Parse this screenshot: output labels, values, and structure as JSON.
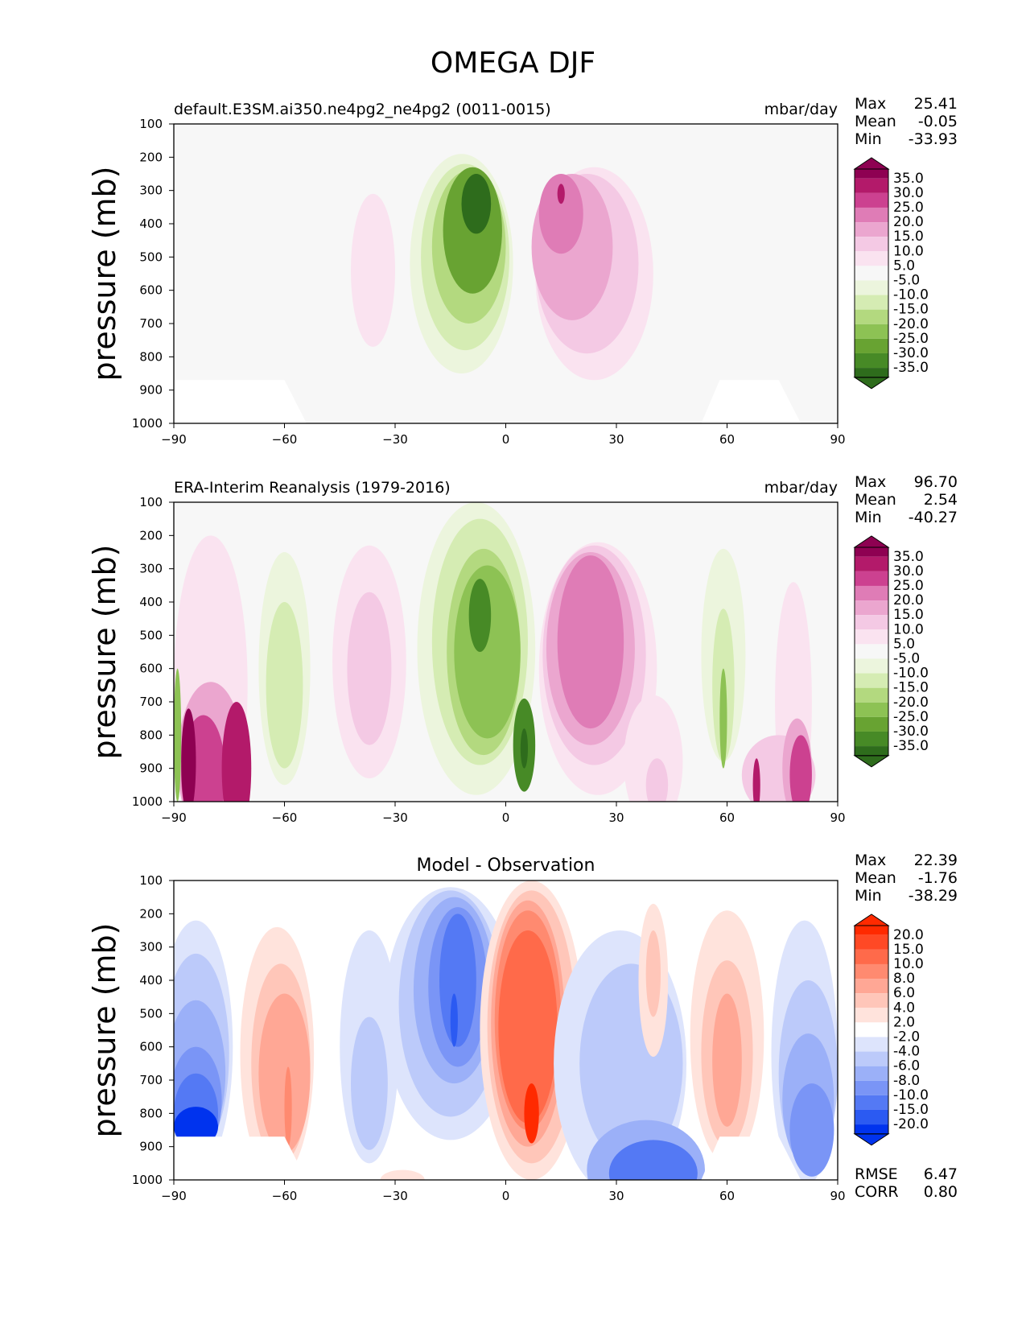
{
  "title": "OMEGA DJF",
  "panels": [
    {
      "left_title": "default.E3SM.ai350.ne4pg2_ne4pg2 (0011-0015)",
      "center_title": "",
      "units": "mbar/day",
      "ylabel": "pressure (mb)",
      "stats": [
        {
          "label": "Max",
          "value": "25.41"
        },
        {
          "label": "Mean",
          "value": "-0.05"
        },
        {
          "label": "Min",
          "value": "-33.93"
        }
      ],
      "colorbar": {
        "ticks": [
          "35.0",
          "30.0",
          "25.0",
          "20.0",
          "15.0",
          "10.0",
          "5.0",
          "-5.0",
          "-10.0",
          "-15.0",
          "-20.0",
          "-25.0",
          "-30.0",
          "-35.0"
        ],
        "colors": [
          "#8e0152",
          "#b31a6a",
          "#cc4190",
          "#df7cb6",
          "#eba6cf",
          "#f4c9e4",
          "#fae3f0",
          "#f7f7f7",
          "#ecf5dd",
          "#d5ecb3",
          "#b3d97f",
          "#8dc254",
          "#68a332",
          "#478a26",
          "#2e6c1c"
        ]
      },
      "blobs": [
        {
          "cx": -36,
          "cy": 540,
          "rx": 6,
          "ry": 230,
          "c": 6
        },
        {
          "cx": -12,
          "cy": 520,
          "rx": 14,
          "ry": 330,
          "c": 8
        },
        {
          "cx": -11,
          "cy": 500,
          "rx": 12,
          "ry": 280,
          "c": 9
        },
        {
          "cx": -10,
          "cy": 470,
          "rx": 10,
          "ry": 230,
          "c": 10
        },
        {
          "cx": -9,
          "cy": 420,
          "rx": 8,
          "ry": 190,
          "c": 12
        },
        {
          "cx": -8,
          "cy": 340,
          "rx": 4,
          "ry": 90,
          "c": 14
        },
        {
          "cx": 24,
          "cy": 550,
          "rx": 16,
          "ry": 320,
          "c": 6
        },
        {
          "cx": 22,
          "cy": 520,
          "rx": 14,
          "ry": 270,
          "c": 5
        },
        {
          "cx": 18,
          "cy": 470,
          "rx": 11,
          "ry": 220,
          "c": 4
        },
        {
          "cx": 15,
          "cy": 370,
          "rx": 6,
          "ry": 120,
          "c": 3
        },
        {
          "cx": 15,
          "cy": 310,
          "rx": 1,
          "ry": 30,
          "c": 1
        }
      ]
    },
    {
      "left_title": "ERA-Interim Reanalysis (1979-2016)",
      "center_title": "",
      "units": "mbar/day",
      "ylabel": "pressure (mb)",
      "stats": [
        {
          "label": "Max",
          "value": "96.70"
        },
        {
          "label": "Mean",
          "value": "2.54"
        },
        {
          "label": "Min",
          "value": "-40.27"
        }
      ],
      "colorbar": {
        "ticks": [
          "35.0",
          "30.0",
          "25.0",
          "20.0",
          "15.0",
          "10.0",
          "5.0",
          "-5.0",
          "-10.0",
          "-15.0",
          "-20.0",
          "-25.0",
          "-30.0",
          "-35.0"
        ],
        "colors": [
          "#8e0152",
          "#b31a6a",
          "#cc4190",
          "#df7cb6",
          "#eba6cf",
          "#f4c9e4",
          "#fae3f0",
          "#f7f7f7",
          "#ecf5dd",
          "#d5ecb3",
          "#b3d97f",
          "#8dc254",
          "#68a332",
          "#478a26",
          "#2e6c1c"
        ]
      },
      "blobs": [
        {
          "cx": -80,
          "cy": 650,
          "rx": 10,
          "ry": 450,
          "c": 6
        },
        {
          "cx": -80,
          "cy": 880,
          "rx": 9,
          "ry": 240,
          "c": 4
        },
        {
          "cx": -82,
          "cy": 920,
          "rx": 6,
          "ry": 180,
          "c": 2
        },
        {
          "cx": -73,
          "cy": 900,
          "rx": 4,
          "ry": 200,
          "c": 1
        },
        {
          "cx": -86,
          "cy": 880,
          "rx": 2,
          "ry": 160,
          "c": 0
        },
        {
          "cx": -89,
          "cy": 800,
          "rx": 1,
          "ry": 200,
          "c": 11
        },
        {
          "cx": -60,
          "cy": 600,
          "rx": 7,
          "ry": 350,
          "c": 8
        },
        {
          "cx": -60,
          "cy": 650,
          "rx": 5,
          "ry": 250,
          "c": 9
        },
        {
          "cx": -37,
          "cy": 580,
          "rx": 10,
          "ry": 350,
          "c": 6
        },
        {
          "cx": -37,
          "cy": 600,
          "rx": 6,
          "ry": 230,
          "c": 5
        },
        {
          "cx": -8,
          "cy": 540,
          "rx": 16,
          "ry": 440,
          "c": 8
        },
        {
          "cx": -7,
          "cy": 520,
          "rx": 13,
          "ry": 370,
          "c": 9
        },
        {
          "cx": -6,
          "cy": 550,
          "rx": 10,
          "ry": 310,
          "c": 10
        },
        {
          "cx": -5,
          "cy": 550,
          "rx": 9,
          "ry": 260,
          "c": 11
        },
        {
          "cx": -7,
          "cy": 440,
          "rx": 3,
          "ry": 110,
          "c": 13
        },
        {
          "cx": 5,
          "cy": 830,
          "rx": 3,
          "ry": 140,
          "c": 13
        },
        {
          "cx": 5,
          "cy": 840,
          "rx": 1,
          "ry": 60,
          "c": 14
        },
        {
          "cx": 25,
          "cy": 600,
          "rx": 16,
          "ry": 380,
          "c": 6
        },
        {
          "cx": 24,
          "cy": 560,
          "rx": 14,
          "ry": 330,
          "c": 5
        },
        {
          "cx": 23,
          "cy": 540,
          "rx": 12,
          "ry": 290,
          "c": 4
        },
        {
          "cx": 23,
          "cy": 520,
          "rx": 9,
          "ry": 260,
          "c": 3
        },
        {
          "cx": 40,
          "cy": 880,
          "rx": 8,
          "ry": 200,
          "c": 6
        },
        {
          "cx": 41,
          "cy": 950,
          "rx": 3,
          "ry": 80,
          "c": 5
        },
        {
          "cx": 59,
          "cy": 560,
          "rx": 6,
          "ry": 320,
          "c": 8
        },
        {
          "cx": 59,
          "cy": 650,
          "rx": 3,
          "ry": 230,
          "c": 9
        },
        {
          "cx": 59,
          "cy": 750,
          "rx": 1,
          "ry": 150,
          "c": 11
        },
        {
          "cx": 78,
          "cy": 700,
          "rx": 5,
          "ry": 360,
          "c": 6
        },
        {
          "cx": 74,
          "cy": 920,
          "rx": 10,
          "ry": 120,
          "c": 5
        },
        {
          "cx": 79,
          "cy": 900,
          "rx": 4,
          "ry": 150,
          "c": 4
        },
        {
          "cx": 80,
          "cy": 920,
          "rx": 3,
          "ry": 120,
          "c": 2
        },
        {
          "cx": 68,
          "cy": 950,
          "rx": 1,
          "ry": 80,
          "c": 1
        }
      ]
    },
    {
      "left_title": "",
      "center_title": "Model - Observation",
      "units": "",
      "ylabel": "pressure (mb)",
      "stats": [
        {
          "label": "Max",
          "value": "22.39"
        },
        {
          "label": "Mean",
          "value": "-1.76"
        },
        {
          "label": "Min",
          "value": "-38.29"
        }
      ],
      "bottom_stats": [
        {
          "label": "RMSE",
          "value": "6.47"
        },
        {
          "label": "CORR",
          "value": "0.80"
        }
      ],
      "colorbar": {
        "ticks": [
          "20.0",
          "15.0",
          "10.0",
          "8.0",
          "6.0",
          "4.0",
          "2.0",
          "-2.0",
          "-4.0",
          "-6.0",
          "-8.0",
          "-10.0",
          "-15.0",
          "-20.0"
        ],
        "colors": [
          "#ff2a00",
          "#ff4925",
          "#ff6a4a",
          "#ff8a70",
          "#ffa795",
          "#ffc6b9",
          "#ffe3dc",
          "#ffffff",
          "#dde4fc",
          "#bccafa",
          "#9bb0f8",
          "#7a95f6",
          "#5479f4",
          "#2b5af2",
          "#0033ee"
        ]
      },
      "blobs": [
        {
          "cx": -84,
          "cy": 600,
          "rx": 10,
          "ry": 380,
          "c": 8
        },
        {
          "cx": -84,
          "cy": 620,
          "rx": 9,
          "ry": 300,
          "c": 9
        },
        {
          "cx": -84,
          "cy": 680,
          "rx": 8,
          "ry": 220,
          "c": 10
        },
        {
          "cx": -84,
          "cy": 760,
          "rx": 7,
          "ry": 160,
          "c": 11
        },
        {
          "cx": -84,
          "cy": 800,
          "rx": 6,
          "ry": 120,
          "c": 12
        },
        {
          "cx": -84,
          "cy": 840,
          "rx": 6,
          "ry": 60,
          "c": 14
        },
        {
          "cx": -62,
          "cy": 620,
          "rx": 10,
          "ry": 380,
          "c": 6
        },
        {
          "cx": -61,
          "cy": 650,
          "rx": 8,
          "ry": 300,
          "c": 5
        },
        {
          "cx": -60,
          "cy": 680,
          "rx": 7,
          "ry": 240,
          "c": 4
        },
        {
          "cx": -59,
          "cy": 780,
          "rx": 1,
          "ry": 120,
          "c": 3
        },
        {
          "cx": -37,
          "cy": 600,
          "rx": 8,
          "ry": 350,
          "c": 8
        },
        {
          "cx": -37,
          "cy": 710,
          "rx": 5,
          "ry": 200,
          "c": 9
        },
        {
          "cx": -15,
          "cy": 500,
          "rx": 18,
          "ry": 380,
          "c": 8
        },
        {
          "cx": -15,
          "cy": 470,
          "rx": 14,
          "ry": 340,
          "c": 9
        },
        {
          "cx": -14,
          "cy": 430,
          "rx": 11,
          "ry": 280,
          "c": 10
        },
        {
          "cx": -13,
          "cy": 420,
          "rx": 8,
          "ry": 240,
          "c": 11
        },
        {
          "cx": -13,
          "cy": 400,
          "rx": 5,
          "ry": 200,
          "c": 12
        },
        {
          "cx": -14,
          "cy": 520,
          "rx": 1,
          "ry": 80,
          "c": 13
        },
        {
          "cx": 7,
          "cy": 550,
          "rx": 14,
          "ry": 450,
          "c": 6
        },
        {
          "cx": 7,
          "cy": 540,
          "rx": 12,
          "ry": 410,
          "c": 5
        },
        {
          "cx": 6,
          "cy": 530,
          "rx": 10,
          "ry": 370,
          "c": 4
        },
        {
          "cx": 6,
          "cy": 520,
          "rx": 9,
          "ry": 330,
          "c": 3
        },
        {
          "cx": 6,
          "cy": 540,
          "rx": 8,
          "ry": 290,
          "c": 2
        },
        {
          "cx": 7,
          "cy": 800,
          "rx": 2,
          "ry": 90,
          "c": 0
        },
        {
          "cx": 31,
          "cy": 650,
          "rx": 18,
          "ry": 400,
          "c": 8
        },
        {
          "cx": 34,
          "cy": 650,
          "rx": 14,
          "ry": 300,
          "c": 9
        },
        {
          "cx": 38,
          "cy": 970,
          "rx": 16,
          "ry": 150,
          "c": 10
        },
        {
          "cx": 40,
          "cy": 980,
          "rx": 12,
          "ry": 100,
          "c": 12
        },
        {
          "cx": 40,
          "cy": 400,
          "rx": 4,
          "ry": 230,
          "c": 6
        },
        {
          "cx": 40,
          "cy": 380,
          "rx": 2,
          "ry": 130,
          "c": 5
        },
        {
          "cx": 60,
          "cy": 570,
          "rx": 10,
          "ry": 380,
          "c": 6
        },
        {
          "cx": 60,
          "cy": 620,
          "rx": 7,
          "ry": 280,
          "c": 5
        },
        {
          "cx": 60,
          "cy": 640,
          "rx": 4,
          "ry": 200,
          "c": 4
        },
        {
          "cx": 81,
          "cy": 620,
          "rx": 9,
          "ry": 400,
          "c": 8
        },
        {
          "cx": 82,
          "cy": 680,
          "rx": 8,
          "ry": 280,
          "c": 9
        },
        {
          "cx": 82,
          "cy": 760,
          "rx": 7,
          "ry": 200,
          "c": 10
        },
        {
          "cx": 83,
          "cy": 850,
          "rx": 6,
          "ry": 140,
          "c": 11
        },
        {
          "cx": -28,
          "cy": 1000,
          "rx": 6,
          "ry": 30,
          "c": 6
        }
      ]
    }
  ]
}
